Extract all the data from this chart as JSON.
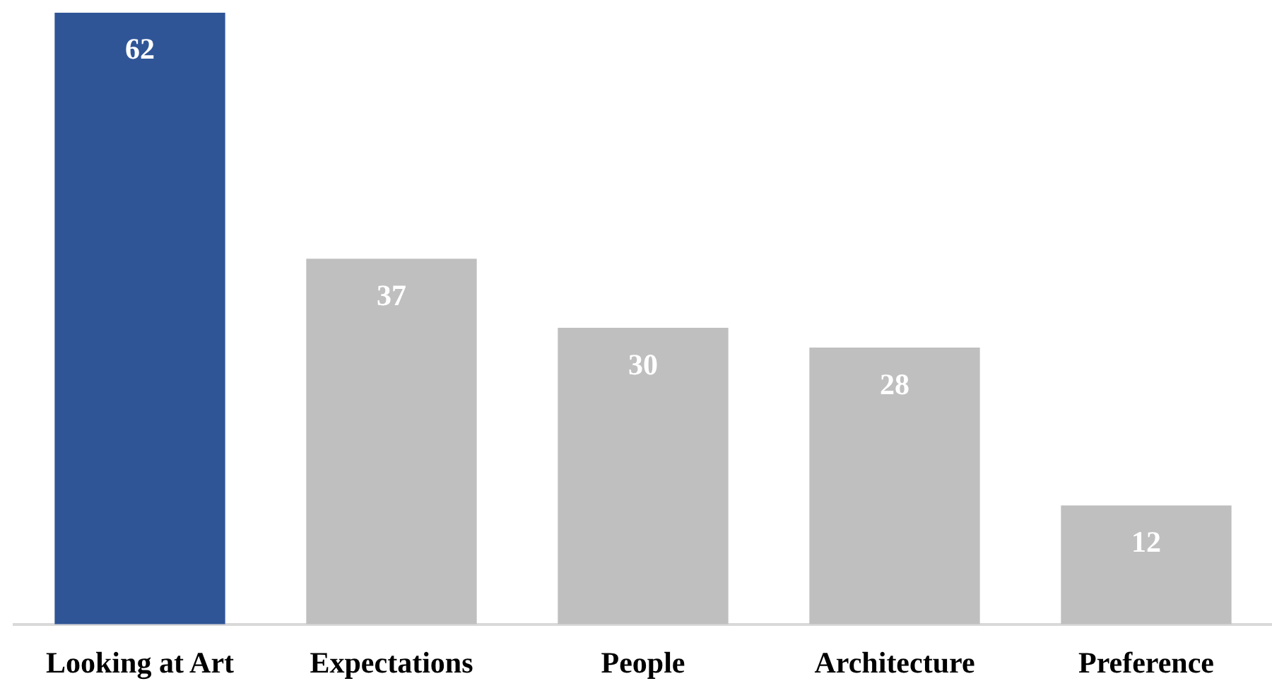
{
  "chart_data": {
    "type": "bar",
    "categories": [
      "Looking at Art",
      "Expectations",
      "People",
      "Architecture",
      "Preference"
    ],
    "values": [
      62,
      37,
      30,
      28,
      12
    ],
    "colors": [
      "#2f5597",
      "#bfbfbf",
      "#bfbfbf",
      "#bfbfbf",
      "#bfbfbf"
    ],
    "data_labels": true,
    "tick_labels": "x"
  }
}
